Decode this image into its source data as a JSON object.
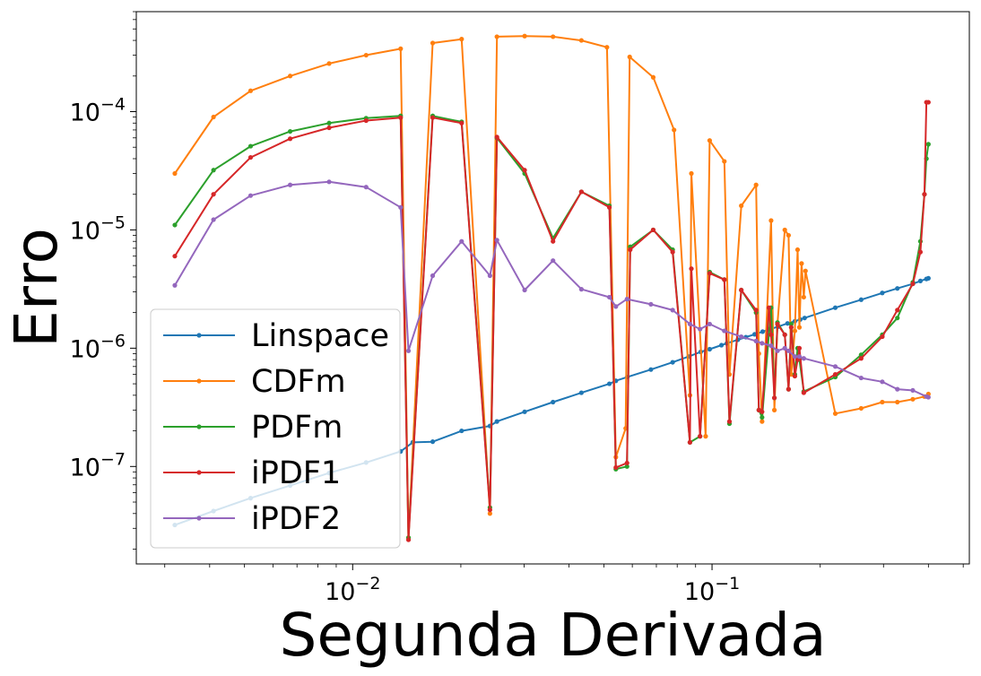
{
  "chart_data": {
    "type": "line",
    "xlabel": "Segunda Derivada",
    "ylabel": "Erro",
    "xscale": "log",
    "yscale": "log",
    "xlim": [
      0.0025,
      0.52
    ],
    "ylim": [
      1.5e-08,
      0.0007
    ],
    "xticks": [
      {
        "value": 0.01,
        "base": "10",
        "exp": "−2"
      },
      {
        "value": 0.1,
        "base": "10",
        "exp": "−1"
      }
    ],
    "yticks": [
      {
        "value": 1e-07,
        "base": "10",
        "exp": "−7"
      },
      {
        "value": 1e-06,
        "base": "10",
        "exp": "−6"
      },
      {
        "value": 1e-05,
        "base": "10",
        "exp": "−5"
      },
      {
        "value": 0.0001,
        "base": "10",
        "exp": "−4"
      }
    ],
    "grid": false,
    "legend_position": "lower-left",
    "series": [
      {
        "name": "Linspace",
        "color": "#1f77b4",
        "x": [
          0.0032,
          0.0041,
          0.0052,
          0.0067,
          0.0086,
          0.0109,
          0.0136,
          0.0147,
          0.0167,
          0.0201,
          0.0241,
          0.0252,
          0.0301,
          0.0361,
          0.0433,
          0.0518,
          0.054,
          0.0581,
          0.0676,
          0.0777,
          0.0861,
          0.093,
          0.0985,
          0.1062,
          0.11,
          0.118,
          0.1242,
          0.1314,
          0.1383,
          0.144,
          0.1525,
          0.1622,
          0.17,
          0.176,
          0.181,
          0.2203,
          0.26,
          0.2977,
          0.3279,
          0.362,
          0.38,
          0.395,
          0.4
        ],
        "y": [
          3.2e-08,
          4.2e-08,
          5.4e-08,
          6.9e-08,
          8.8e-08,
          1.08e-07,
          1.34e-07,
          1.6e-07,
          1.62e-07,
          2e-07,
          2.2e-07,
          2.4e-07,
          2.9e-07,
          3.5e-07,
          4.2e-07,
          5e-07,
          5.3e-07,
          5.7e-07,
          6.6e-07,
          7.6e-07,
          8.5e-07,
          9.3e-07,
          9.8e-07,
          1.06e-06,
          1.1e-06,
          1.18e-06,
          1.24e-06,
          1.31e-06,
          1.38e-06,
          1.44e-06,
          1.52e-06,
          1.62e-06,
          1.69e-06,
          1.75e-06,
          1.8e-06,
          2.2e-06,
          2.57e-06,
          2.93e-06,
          3.2e-06,
          3.5e-06,
          3.7e-06,
          3.85e-06,
          3.9e-06
        ]
      },
      {
        "name": "CDFm",
        "color": "#ff7f0e",
        "x": [
          0.0032,
          0.0041,
          0.0052,
          0.0067,
          0.0086,
          0.0109,
          0.0136,
          0.0143,
          0.0167,
          0.0201,
          0.0241,
          0.0252,
          0.0301,
          0.0361,
          0.0433,
          0.051,
          0.054,
          0.0575,
          0.059,
          0.0686,
          0.0784,
          0.0868,
          0.0876,
          0.096,
          0.0985,
          0.1082,
          0.1118,
          0.1206,
          0.1326,
          0.135,
          0.1378,
          0.146,
          0.1491,
          0.1521,
          0.1594,
          0.1633,
          0.1661,
          0.17,
          0.173,
          0.175,
          0.1775,
          0.18,
          0.182,
          0.2203,
          0.26,
          0.2977,
          0.3279,
          0.362,
          0.39,
          0.4
        ],
        "y": [
          3e-05,
          9e-05,
          0.00015,
          0.0002,
          0.000255,
          0.0003,
          0.00034,
          2.5e-08,
          0.00038,
          0.00041,
          4e-08,
          0.00043,
          0.000435,
          0.00043,
          0.0004,
          0.00035,
          1.2e-07,
          2.1e-07,
          0.00029,
          0.000195,
          7e-05,
          4e-07,
          3e-05,
          1.8e-07,
          5.7e-05,
          3.8e-05,
          6e-07,
          1.6e-05,
          2.4e-05,
          9e-07,
          2.4e-07,
          1.2e-05,
          3e-07,
          1.6e-06,
          1e-05,
          9e-06,
          6e-07,
          1.4e-06,
          6.8e-06,
          1.5e-06,
          5.2e-06,
          2.7e-06,
          4.5e-06,
          2.8e-07,
          3.1e-07,
          3.5e-07,
          3.5e-07,
          3.7e-07,
          3.9e-07,
          4.1e-07
        ]
      },
      {
        "name": "PDFm",
        "color": "#2ca02c",
        "x": [
          0.0032,
          0.0041,
          0.0052,
          0.0067,
          0.0086,
          0.0109,
          0.0136,
          0.0143,
          0.0167,
          0.0201,
          0.0241,
          0.0252,
          0.0301,
          0.0361,
          0.0433,
          0.0518,
          0.054,
          0.058,
          0.0592,
          0.0686,
          0.0777,
          0.0868,
          0.0926,
          0.0985,
          0.1082,
          0.1118,
          0.1206,
          0.1326,
          0.135,
          0.1378,
          0.146,
          0.1491,
          0.1521,
          0.1594,
          0.1633,
          0.1661,
          0.17,
          0.173,
          0.175,
          0.18,
          0.2203,
          0.26,
          0.2977,
          0.3279,
          0.362,
          0.38,
          0.39,
          0.395,
          0.4
        ],
        "y": [
          1.1e-05,
          3.2e-05,
          5.1e-05,
          6.8e-05,
          8e-05,
          8.8e-05,
          9.2e-05,
          2.5e-08,
          9.2e-05,
          8.2e-05,
          4.5e-08,
          6e-05,
          3e-05,
          8.5e-06,
          2.1e-05,
          1.6e-05,
          9.5e-08,
          1e-07,
          7.2e-06,
          1e-05,
          6.8e-06,
          1.6e-07,
          1.8e-07,
          4.4e-06,
          3.8e-06,
          2.3e-07,
          3.1e-06,
          2e-06,
          3e-07,
          2.6e-07,
          2.2e-06,
          3.8e-07,
          1.65e-06,
          1.3e-06,
          4.5e-07,
          1.6e-06,
          6e-07,
          1e-06,
          8e-07,
          4.3e-07,
          5.7e-07,
          8.8e-07,
          1.3e-06,
          1.8e-06,
          3.6e-06,
          8e-06,
          2e-05,
          4e-05,
          5.3e-05
        ]
      },
      {
        "name": "iPDF1",
        "color": "#d62728",
        "x": [
          0.0032,
          0.0041,
          0.0052,
          0.0067,
          0.0086,
          0.0109,
          0.0136,
          0.0143,
          0.0167,
          0.0201,
          0.0241,
          0.0252,
          0.0301,
          0.0361,
          0.0433,
          0.0518,
          0.054,
          0.058,
          0.0592,
          0.0686,
          0.0777,
          0.0868,
          0.0876,
          0.0926,
          0.0985,
          0.1082,
          0.1118,
          0.1206,
          0.1326,
          0.135,
          0.1378,
          0.144,
          0.146,
          0.1491,
          0.1521,
          0.1594,
          0.1633,
          0.1661,
          0.17,
          0.173,
          0.175,
          0.18,
          0.2203,
          0.26,
          0.2977,
          0.3279,
          0.362,
          0.38,
          0.39,
          0.395,
          0.4
        ],
        "y": [
          6e-06,
          2e-05,
          4.1e-05,
          5.9e-05,
          7.3e-05,
          8.4e-05,
          8.9e-05,
          2.4e-08,
          8.9e-05,
          8e-05,
          4.3e-08,
          6.1e-05,
          3.2e-05,
          8e-06,
          2.1e-05,
          1.55e-05,
          9.8e-08,
          1.07e-07,
          6.8e-06,
          1e-05,
          6.5e-06,
          1.6e-07,
          4.7e-06,
          1.8e-07,
          4.3e-06,
          3.8e-06,
          2.4e-07,
          3.1e-06,
          2.1e-06,
          3e-07,
          2.9e-07,
          2.2e-06,
          1.3e-06,
          3.8e-07,
          1.6e-06,
          1.3e-06,
          4.5e-07,
          1.5e-06,
          5.8e-07,
          8e-07,
          1e-06,
          4.2e-07,
          6e-07,
          8.2e-07,
          1.25e-06,
          2.1e-06,
          3.5e-06,
          6.5e-06,
          2e-05,
          0.00012,
          0.00012
        ]
      },
      {
        "name": "iPDF2",
        "color": "#9467bd",
        "x": [
          0.0032,
          0.0041,
          0.0052,
          0.0067,
          0.0086,
          0.0109,
          0.0136,
          0.0143,
          0.0167,
          0.0201,
          0.0241,
          0.0252,
          0.0301,
          0.0361,
          0.0433,
          0.0518,
          0.054,
          0.058,
          0.0676,
          0.0777,
          0.0868,
          0.0926,
          0.0985,
          0.1082,
          0.1206,
          0.1326,
          0.1378,
          0.146,
          0.1521,
          0.1594,
          0.1633,
          0.17,
          0.175,
          0.18,
          0.2203,
          0.26,
          0.2977,
          0.3279,
          0.362,
          0.395,
          0.4
        ],
        "y": [
          3.4e-06,
          1.22e-05,
          1.95e-05,
          2.4e-05,
          2.55e-05,
          2.3e-05,
          1.55e-05,
          9.5e-07,
          4.1e-06,
          8e-06,
          4.1e-06,
          8.2e-06,
          3.1e-06,
          5.5e-06,
          3.15e-06,
          2.7e-06,
          2.25e-06,
          2.6e-06,
          2.35e-06,
          2.1e-06,
          1.6e-06,
          1.45e-06,
          1.6e-06,
          1.4e-06,
          1.25e-06,
          1.15e-06,
          1.1e-06,
          1.05e-06,
          9.5e-07,
          1e-06,
          9.5e-07,
          8.5e-07,
          8.5e-07,
          8.2e-07,
          7e-07,
          5.6e-07,
          5.2e-07,
          4.5e-07,
          4.4e-07,
          3.9e-07,
          3.85e-07
        ]
      }
    ]
  }
}
